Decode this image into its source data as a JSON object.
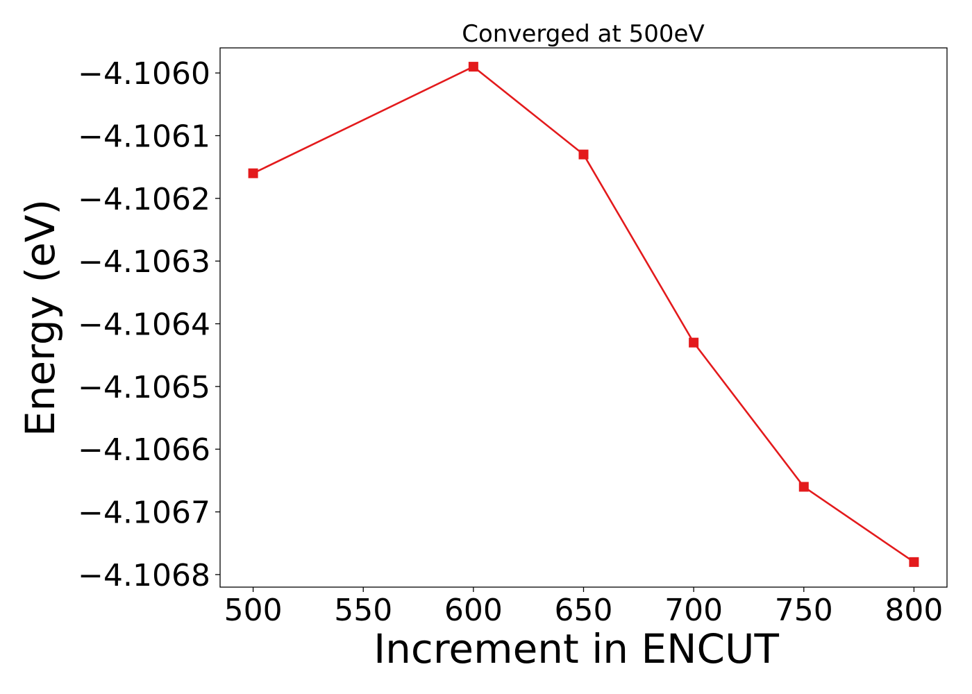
{
  "chart_data": {
    "type": "line",
    "title": "Converged at 500eV",
    "xlabel": "Increment in ENCUT",
    "ylabel": "Energy (eV)",
    "x": [
      500,
      600,
      650,
      700,
      750,
      800
    ],
    "series": [
      {
        "values": [
          -4.10616,
          -4.10599,
          -4.10613,
          -4.10643,
          -4.10666,
          -4.10678
        ],
        "color": "#e31a1c",
        "marker": "square"
      }
    ],
    "xlim": [
      485,
      815
    ],
    "ylim": [
      -4.10682,
      -4.10596
    ],
    "xticks": [
      500,
      550,
      600,
      650,
      700,
      750,
      800
    ],
    "xtick_labels": [
      "500",
      "550",
      "600",
      "650",
      "700",
      "750",
      "800"
    ],
    "yticks": [
      -4.106,
      -4.1061,
      -4.1062,
      -4.1063,
      -4.1064,
      -4.1065,
      -4.1066,
      -4.1067,
      -4.1068
    ],
    "ytick_labels": [
      "−4.1060",
      "−4.1061",
      "−4.1062",
      "−4.1063",
      "−4.1064",
      "−4.1065",
      "−4.1066",
      "−4.1067",
      "−4.1068"
    ],
    "grid": false,
    "legend": false
  }
}
